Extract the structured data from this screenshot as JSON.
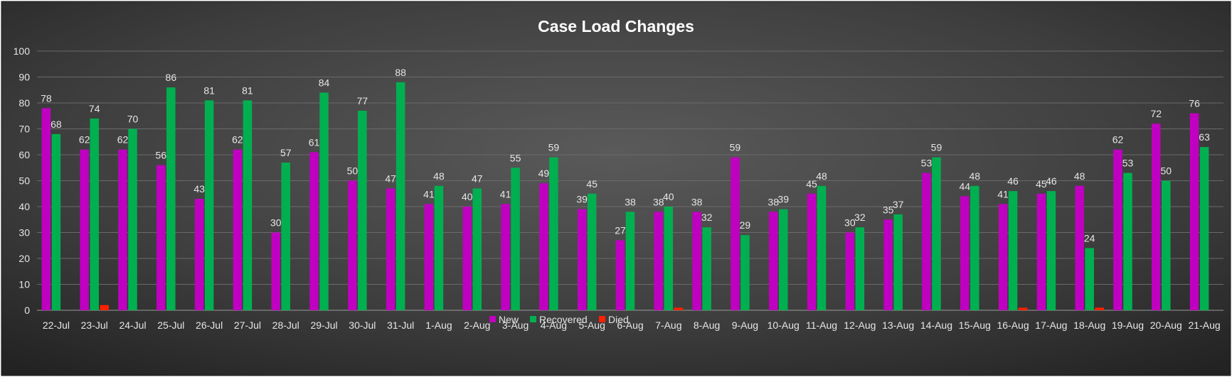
{
  "chart_data": {
    "type": "bar",
    "title": "Case Load Changes",
    "xlabel": "",
    "ylabel": "",
    "ylim": [
      0,
      100
    ],
    "yticks": [
      0,
      10,
      20,
      30,
      40,
      50,
      60,
      70,
      80,
      90,
      100
    ],
    "grid": true,
    "legend_position": "bottom",
    "categories": [
      "22-Jul",
      "23-Jul",
      "24-Jul",
      "25-Jul",
      "26-Jul",
      "27-Jul",
      "28-Jul",
      "29-Jul",
      "30-Jul",
      "31-Jul",
      "1-Aug",
      "2-Aug",
      "3-Aug",
      "4-Aug",
      "5-Aug",
      "6-Aug",
      "7-Aug",
      "8-Aug",
      "9-Aug",
      "10-Aug",
      "11-Aug",
      "12-Aug",
      "13-Aug",
      "14-Aug",
      "15-Aug",
      "16-Aug",
      "17-Aug",
      "18-Aug",
      "19-Aug",
      "20-Aug",
      "21-Aug"
    ],
    "series": [
      {
        "name": "New",
        "color": "#c000c0",
        "show_labels": true,
        "values": [
          78,
          62,
          62,
          56,
          43,
          62,
          30,
          61,
          50,
          47,
          41,
          40,
          41,
          49,
          39,
          27,
          38,
          38,
          59,
          38,
          45,
          30,
          35,
          53,
          44,
          41,
          45,
          48,
          62,
          72,
          76
        ]
      },
      {
        "name": "Recovered",
        "color": "#00b050",
        "show_labels": true,
        "values": [
          68,
          74,
          70,
          86,
          81,
          81,
          57,
          84,
          77,
          88,
          48,
          47,
          55,
          59,
          45,
          38,
          40,
          32,
          29,
          39,
          48,
          32,
          37,
          59,
          48,
          46,
          46,
          24,
          53,
          50,
          63
        ]
      },
      {
        "name": "Died",
        "color": "#ff2000",
        "show_labels": false,
        "values": [
          0,
          2,
          0,
          0,
          0,
          0,
          0,
          0,
          0,
          0,
          0,
          0,
          0,
          0,
          0,
          0,
          1,
          0,
          0,
          0,
          0,
          0,
          0,
          0,
          0,
          1,
          0,
          1,
          0,
          0,
          0
        ]
      }
    ]
  }
}
